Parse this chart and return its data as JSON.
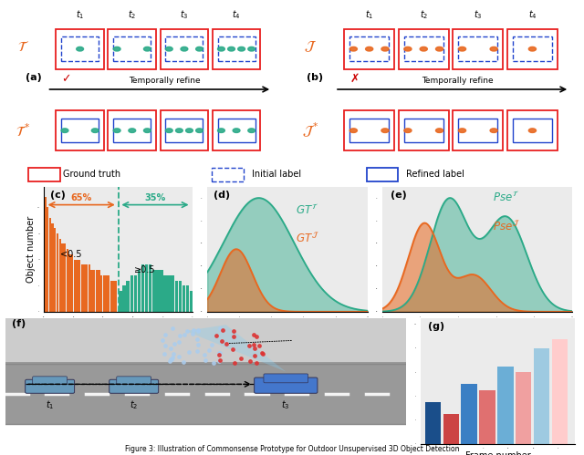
{
  "orange": "#E86820",
  "teal": "#2BAA88",
  "red_box": "#E82020",
  "blue_box": "#2244CC",
  "panel_bg": "#EBEBEB",
  "white": "#FFFFFF",
  "hist_orange": "#E86820",
  "hist_teal": "#2BAA88",
  "orange_hist": [
    22,
    20,
    18,
    17,
    16,
    15,
    14,
    13,
    13,
    12,
    11,
    11,
    10,
    10,
    10,
    9,
    9,
    9,
    9,
    8,
    8,
    8,
    8,
    7,
    7,
    7,
    7,
    6,
    6,
    6
  ],
  "teal_hist": [
    4,
    5,
    6,
    7,
    7,
    8,
    9,
    9,
    9,
    8,
    8,
    8,
    7,
    7,
    7,
    6,
    6,
    5,
    5,
    4
  ],
  "blue_bar_vals": [
    3.5,
    5.0,
    6.5,
    8.0
  ],
  "red_bar_vals": [
    2.5,
    4.5,
    6.0,
    8.8
  ],
  "blue_shades": [
    "#1A4E8A",
    "#3B7FC4",
    "#6BAED6",
    "#9ECAE1"
  ],
  "red_shades": [
    "#CC4444",
    "#E07070",
    "#F0A0A0",
    "#FFCCCC"
  ]
}
